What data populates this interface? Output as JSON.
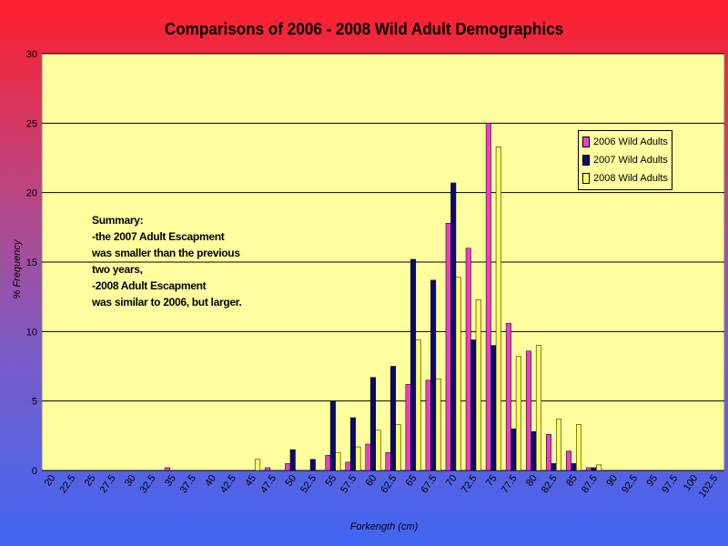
{
  "chart_data": {
    "type": "bar",
    "title": "Comparisons of 2006 - 2008 Wild Adult Demographics",
    "xlabel": "Forkength (cm)",
    "ylabel": "% Frequency",
    "ylim": [
      0,
      30
    ],
    "yticks": [
      "0",
      "5",
      "10",
      "15",
      "20",
      "25",
      "30"
    ],
    "grid": true,
    "legend_position": "top-right",
    "categories": [
      "20",
      "22.5",
      "25",
      "27.5",
      "30",
      "32.5",
      "35",
      "37.5",
      "40",
      "42.5",
      "45",
      "47.5",
      "50",
      "52.5",
      "55",
      "57.5",
      "60",
      "62.5",
      "65",
      "67.5",
      "70",
      "72.5",
      "75",
      "77.5",
      "80",
      "82.5",
      "85",
      "87.5",
      "90",
      "92.5",
      "95",
      "97.5",
      "100",
      "102.5"
    ],
    "series": [
      {
        "name": "2006 Wild Adults",
        "color": "#e83fc4",
        "values": [
          0,
          0,
          0,
          0,
          0,
          0,
          0.2,
          0,
          0,
          0,
          0,
          0.2,
          0.5,
          0,
          1.1,
          0.6,
          1.9,
          1.3,
          6.2,
          6.5,
          17.8,
          16.0,
          25.0,
          10.6,
          8.6,
          2.6,
          1.4,
          0.2,
          0,
          0,
          0,
          0,
          0,
          0
        ]
      },
      {
        "name": "2007 Wild Adults",
        "color": "#0a0a6b",
        "values": [
          0,
          0,
          0,
          0,
          0,
          0,
          0,
          0,
          0,
          0,
          0,
          0,
          1.5,
          0.8,
          5.0,
          3.8,
          6.7,
          7.5,
          15.2,
          13.7,
          20.7,
          9.4,
          9.0,
          3.0,
          2.8,
          0.5,
          0.5,
          0.2,
          0,
          0,
          0,
          0,
          0,
          0
        ]
      },
      {
        "name": "2008 Wild Adults",
        "color": "#ffff66",
        "values": [
          0,
          0,
          0,
          0,
          0,
          0,
          0,
          0,
          0,
          0,
          0.8,
          0,
          0,
          0,
          1.3,
          1.7,
          2.9,
          3.3,
          9.4,
          6.6,
          13.9,
          12.3,
          23.3,
          8.2,
          9.0,
          3.7,
          3.3,
          0.4,
          0,
          0,
          0,
          0,
          0,
          0
        ]
      }
    ]
  },
  "summary": {
    "lines": [
      "Summary:",
      "-the 2007 Adult Escapment",
      "was smaller than the previous",
      "two years,",
      "-2008 Adult Escapment",
      "was similar to 2006, but larger."
    ]
  },
  "colors": {
    "plot_background": "#ffffa0",
    "gridline": "#000000"
  }
}
